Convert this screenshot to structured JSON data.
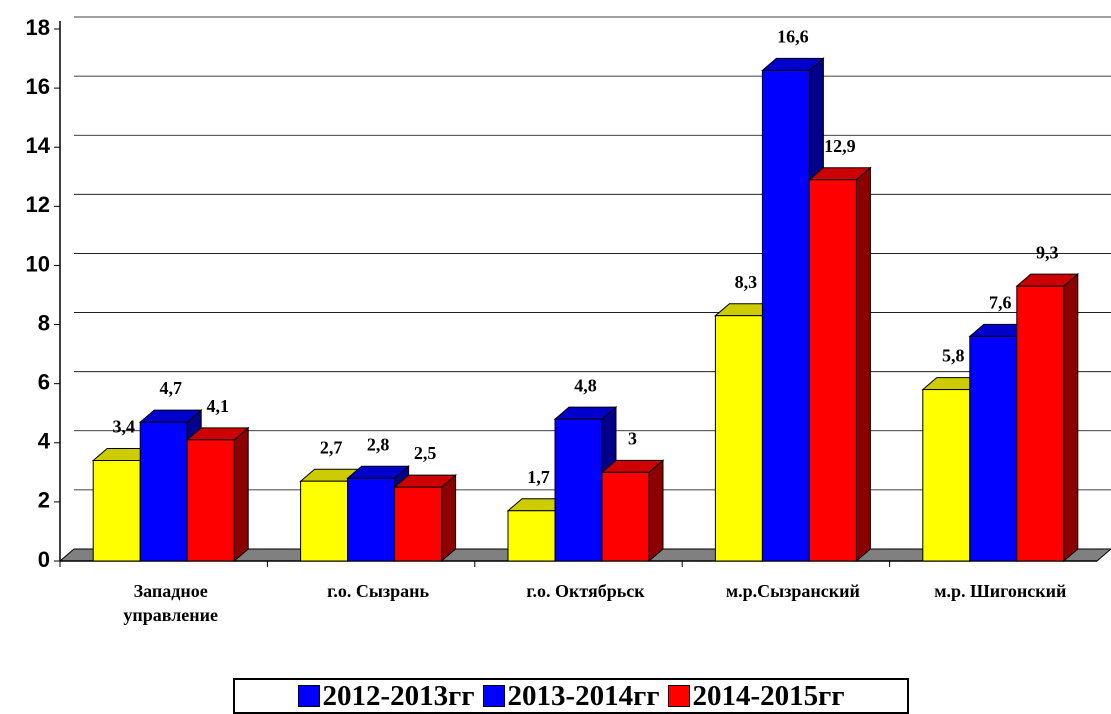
{
  "chart_data": {
    "type": "bar3d",
    "categories": [
      "Западное управление",
      "г.о. Сызрань",
      "г.о. Октябрьск",
      "м.р.Сызранский",
      "м.р. Шигонский"
    ],
    "series": [
      {
        "name": "2012-2013гг",
        "color": "#ffff00",
        "legend_color": "#0000ff",
        "values": [
          3.4,
          2.7,
          1.7,
          8.3,
          5.8
        ],
        "value_labels": [
          "3,4",
          "2,7",
          "1,7",
          "8,3",
          "5,8"
        ]
      },
      {
        "name": "2013-2014гг",
        "color": "#0000ff",
        "legend_color": "#0000ff",
        "values": [
          4.7,
          2.8,
          4.8,
          16.6,
          7.6
        ],
        "value_labels": [
          "4,7",
          "2,8",
          "4,8",
          "16,6",
          "7,6"
        ]
      },
      {
        "name": "2014-2015гг",
        "color": "#ff0000",
        "legend_color": "#ff0000",
        "values": [
          4.1,
          2.5,
          3,
          12.9,
          9.3
        ],
        "value_labels": [
          "4,1",
          "2,5",
          "3",
          "12,9",
          "9,3"
        ]
      }
    ],
    "ylim": [
      0,
      18
    ],
    "yticks": [
      0,
      2,
      4,
      6,
      8,
      10,
      12,
      14,
      16,
      18
    ],
    "grid": true,
    "legend": "bottom"
  }
}
